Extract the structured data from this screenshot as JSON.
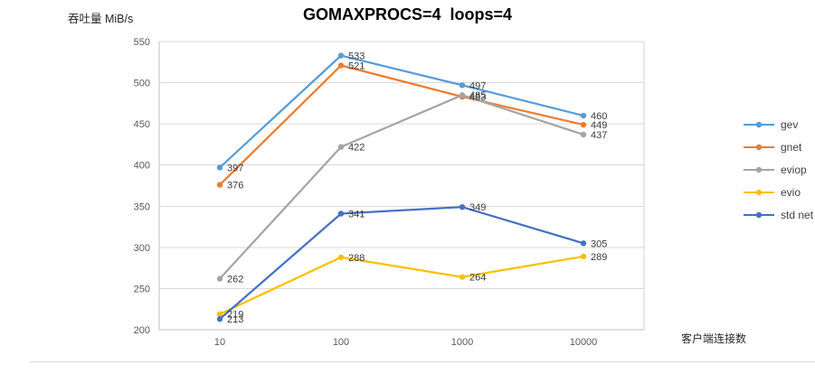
{
  "chart_data": {
    "type": "line",
    "title": "GOMAXPROCS=4  loops=4",
    "ylabel": "吞吐量 MiB/s",
    "xlabel": "客户端连接数",
    "categories": [
      "10",
      "100",
      "1000",
      "10000"
    ],
    "ylim": [
      200,
      550
    ],
    "yticks": [
      200,
      250,
      300,
      350,
      400,
      450,
      500,
      550
    ],
    "grid": true,
    "legend_position": "right",
    "data_labels": true,
    "series": [
      {
        "name": "gev",
        "color": "#5B9BD5",
        "values": [
          397,
          533,
          497,
          460
        ]
      },
      {
        "name": "gnet",
        "color": "#ED7D31",
        "values": [
          376,
          521,
          483,
          449
        ]
      },
      {
        "name": "eviop",
        "color": "#A5A5A5",
        "values": [
          262,
          422,
          485,
          437
        ]
      },
      {
        "name": "evio",
        "color": "#FFC000",
        "values": [
          219,
          288,
          264,
          289
        ]
      },
      {
        "name": "std net",
        "color": "#4472C4",
        "values": [
          213,
          341,
          349,
          305
        ]
      }
    ]
  }
}
